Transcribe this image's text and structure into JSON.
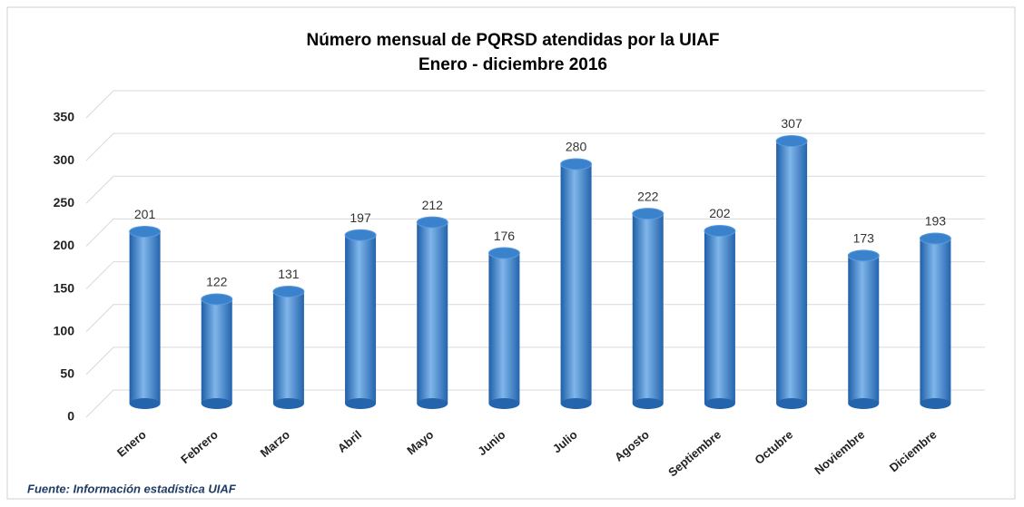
{
  "chart_data": {
    "type": "bar",
    "title": "Número mensual de PQRSD atendidas por la UIAF",
    "subtitle": "Enero - diciembre 2016",
    "categories": [
      "Enero",
      "Febrero",
      "Marzo",
      "Abril",
      "Mayo",
      "Junio",
      "Julio",
      "Agosto",
      "Septiembre",
      "Octubre",
      "Noviembre",
      "Diciembre"
    ],
    "values": [
      201,
      122,
      131,
      197,
      212,
      176,
      280,
      222,
      202,
      307,
      173,
      193
    ],
    "color": "#3b82cc",
    "ylim": [
      0,
      350
    ],
    "yticks": [
      0,
      50,
      100,
      150,
      200,
      250,
      300,
      350
    ],
    "grid": true,
    "source": "Fuente: Información estadística UIAF"
  }
}
